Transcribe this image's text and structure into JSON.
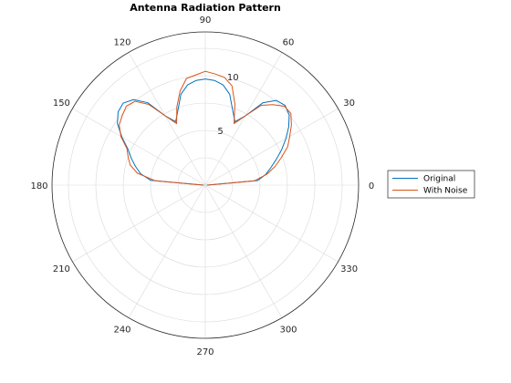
{
  "chart_data": {
    "type": "polar-line",
    "title": "Antenna Radiation Pattern",
    "theta_unit": "degrees",
    "theta_ticks": [
      0,
      30,
      60,
      90,
      120,
      150,
      180,
      210,
      240,
      270,
      300,
      330
    ],
    "theta_tick_labels": [
      "0",
      "30",
      "60",
      "90",
      "120",
      "150",
      "180",
      "210",
      "240",
      "270",
      "300",
      "330"
    ],
    "r_range": [
      0,
      14
    ],
    "r_gridlines": [
      2.5,
      5,
      7.5,
      10,
      12.5
    ],
    "r_tick_labels": [
      {
        "value": 5,
        "label": "5"
      },
      {
        "value": 10,
        "label": "10"
      }
    ],
    "theta_grid_step": 30,
    "grid": true,
    "legend_position": "right",
    "series": [
      {
        "name": "Original",
        "color": "#0072bd",
        "theta": [
          0,
          5,
          10,
          15,
          20,
          25,
          30,
          35,
          40,
          45,
          50,
          55,
          60,
          65,
          70,
          75,
          80,
          85,
          90,
          95,
          100,
          105,
          110,
          115,
          120,
          125,
          130,
          135,
          140,
          145,
          150,
          155,
          160,
          165,
          170,
          175,
          180
        ],
        "r": [
          0.15,
          4.8,
          5.6,
          6.2,
          6.9,
          7.7,
          8.5,
          9.3,
          10.0,
          10.3,
          10.1,
          9.2,
          7.3,
          6.4,
          7.3,
          8.6,
          9.3,
          9.6,
          9.7,
          9.6,
          9.3,
          8.6,
          7.3,
          6.4,
          7.3,
          9.2,
          10.2,
          10.6,
          10.4,
          9.8,
          8.8,
          7.8,
          7.2,
          6.6,
          6.0,
          5.0,
          0.15
        ]
      },
      {
        "name": "With Noise",
        "color": "#d95319",
        "theta": [
          0,
          5,
          10,
          15,
          20,
          25,
          30,
          35,
          40,
          45,
          50,
          55,
          60,
          65,
          70,
          75,
          80,
          85,
          90,
          95,
          100,
          105,
          110,
          115,
          120,
          125,
          130,
          135,
          140,
          145,
          150,
          155,
          160,
          165,
          170,
          175,
          180
        ],
        "r": [
          0.2,
          4.5,
          5.7,
          6.6,
          7.4,
          8.3,
          8.9,
          9.6,
          10.2,
          10.2,
          9.6,
          8.9,
          7.3,
          6.2,
          7.9,
          9.4,
          10.0,
          10.2,
          10.4,
          10.1,
          9.9,
          8.9,
          7.6,
          6.2,
          7.3,
          9.0,
          10.0,
          10.2,
          9.9,
          9.6,
          8.9,
          7.9,
          7.5,
          7.1,
          6.3,
          4.6,
          0.2
        ]
      }
    ]
  }
}
